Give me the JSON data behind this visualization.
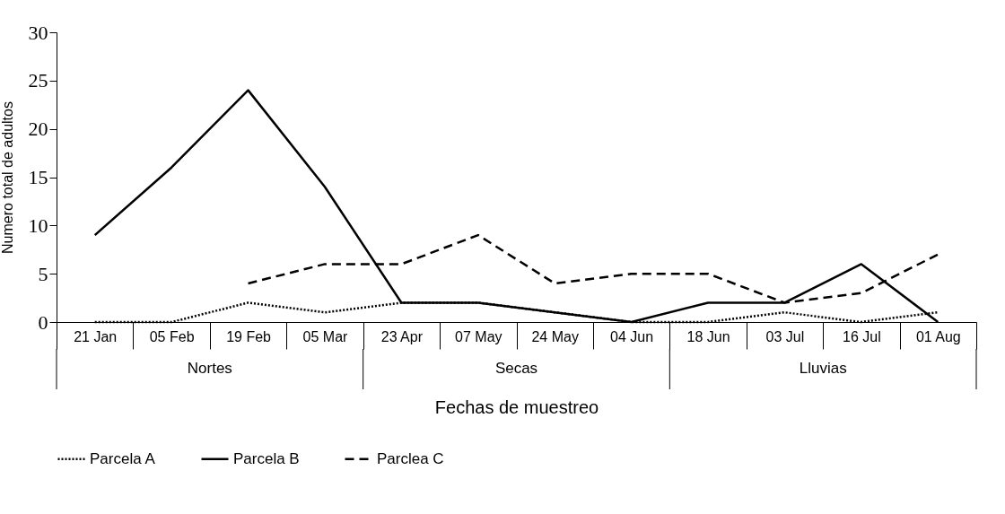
{
  "chart_data": {
    "type": "line",
    "xlabel": "Fechas de muestreo",
    "ylabel": "Numero total de adultos",
    "categories": [
      "21  Jan",
      "05 Feb",
      "19 Feb",
      "05 Mar",
      "23 Apr",
      "07 May",
      "24 May",
      "04 Jun",
      "18 Jun",
      "03 Jul",
      "16 Jul",
      "01 Aug"
    ],
    "series": [
      {
        "name": "Parcela A",
        "color": "#000000",
        "line_style": "dotted",
        "values": [
          0,
          0,
          2,
          1,
          2,
          2,
          1,
          0,
          0,
          1,
          0,
          1
        ]
      },
      {
        "name": "Parcela B",
        "color": "#000000",
        "line_style": "solid",
        "values": [
          9,
          16,
          24,
          14,
          2,
          2,
          1,
          0,
          2,
          2,
          6,
          0
        ]
      },
      {
        "name": "Parclea C",
        "color": "#000000",
        "line_style": "dashed",
        "values": [
          null,
          null,
          4,
          6,
          6,
          9,
          4,
          5,
          5,
          2,
          3,
          7
        ]
      }
    ],
    "annotations": [
      "Nortes",
      "Secas",
      "Lluvias"
    ],
    "ylim": [
      0,
      30
    ],
    "yticks": [
      0,
      5,
      10,
      15,
      20,
      25,
      30
    ],
    "grid": false,
    "legend": "bottom",
    "marker": "none"
  }
}
